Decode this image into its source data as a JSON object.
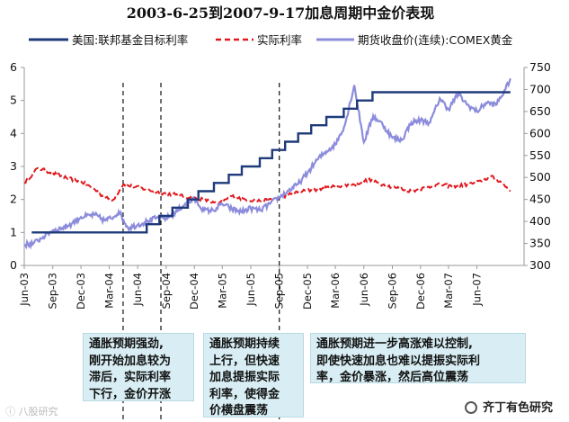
{
  "chart_data": {
    "type": "line",
    "title": "2003-6-25到2007-9-17加息周期中金价表现",
    "legend": [
      "美国:联邦基金目标利率",
      "实际利率",
      "期货收盘价(连续):COMEX黄金"
    ],
    "y_left": {
      "ylim": [
        0,
        6
      ],
      "ticks": [
        "0",
        "1",
        "2",
        "3",
        "4",
        "5",
        "6"
      ]
    },
    "y_right": {
      "ylim": [
        300,
        750
      ],
      "ticks": [
        "300",
        "350",
        "400",
        "450",
        "500",
        "550",
        "600",
        "650",
        "700",
        "750"
      ]
    },
    "x_range": [
      "2003-06-01",
      "2007-10-31"
    ],
    "x_ticks": [
      "Jun-03",
      "Sep-03",
      "Dec-03",
      "Mar-04",
      "Jun-04",
      "Sep-04",
      "Dec-04",
      "Mar-05",
      "Jun-05",
      "Sep-05",
      "Dec-05",
      "Mar-06",
      "Jun-06",
      "Sep-06",
      "Dec-06",
      "Mar-07",
      "Jun-07"
    ],
    "x_tick_dates": [
      "2003-06-01",
      "2003-09-01",
      "2003-12-01",
      "2004-03-01",
      "2004-06-01",
      "2004-09-01",
      "2004-12-01",
      "2005-03-01",
      "2005-06-01",
      "2005-09-01",
      "2005-12-01",
      "2006-03-01",
      "2006-06-01",
      "2006-09-01",
      "2006-12-01",
      "2007-03-01",
      "2007-06-01"
    ],
    "vlines": [
      "2004-04-15",
      "2004-08-15",
      "2005-09-01"
    ],
    "series": [
      {
        "name": "美国:联邦基金目标利率",
        "axis": "left",
        "color": "#1f3a7a",
        "style": "step",
        "points": [
          [
            "2003-06-25",
            1.0
          ],
          [
            "2004-06-30",
            1.25
          ],
          [
            "2004-08-10",
            1.5
          ],
          [
            "2004-09-21",
            1.75
          ],
          [
            "2004-11-10",
            2.0
          ],
          [
            "2004-12-14",
            2.25
          ],
          [
            "2005-02-02",
            2.5
          ],
          [
            "2005-03-22",
            2.75
          ],
          [
            "2005-05-03",
            3.0
          ],
          [
            "2005-06-30",
            3.25
          ],
          [
            "2005-08-09",
            3.5
          ],
          [
            "2005-09-20",
            3.75
          ],
          [
            "2005-11-01",
            4.0
          ],
          [
            "2005-12-13",
            4.25
          ],
          [
            "2006-01-31",
            4.5
          ],
          [
            "2006-03-28",
            4.75
          ],
          [
            "2006-05-10",
            5.0
          ],
          [
            "2006-06-29",
            5.25
          ],
          [
            "2007-09-17",
            5.25
          ]
        ]
      },
      {
        "name": "实际利率",
        "axis": "left",
        "color": "#e0191e",
        "style": "dashed-noisy",
        "points": [
          [
            "2003-06-01",
            2.5
          ],
          [
            "2003-07-15",
            2.95
          ],
          [
            "2003-09-01",
            2.8
          ],
          [
            "2003-10-15",
            2.65
          ],
          [
            "2003-12-01",
            2.55
          ],
          [
            "2004-01-15",
            2.3
          ],
          [
            "2004-02-15",
            2.05
          ],
          [
            "2004-03-15",
            2.0
          ],
          [
            "2004-04-15",
            2.45
          ],
          [
            "2004-05-15",
            2.4
          ],
          [
            "2004-07-01",
            2.3
          ],
          [
            "2004-08-15",
            2.2
          ],
          [
            "2004-10-01",
            2.15
          ],
          [
            "2004-11-15",
            2.05
          ],
          [
            "2005-01-01",
            2.0
          ],
          [
            "2005-02-15",
            1.85
          ],
          [
            "2005-04-01",
            2.1
          ],
          [
            "2005-05-15",
            2.0
          ],
          [
            "2005-07-01",
            1.95
          ],
          [
            "2005-08-15",
            2.0
          ],
          [
            "2005-10-01",
            2.15
          ],
          [
            "2005-11-15",
            2.25
          ],
          [
            "2006-01-01",
            2.3
          ],
          [
            "2006-03-01",
            2.4
          ],
          [
            "2006-05-01",
            2.45
          ],
          [
            "2006-06-15",
            2.6
          ],
          [
            "2006-08-01",
            2.45
          ],
          [
            "2006-09-15",
            2.35
          ],
          [
            "2006-11-01",
            2.25
          ],
          [
            "2006-12-15",
            2.35
          ],
          [
            "2007-02-01",
            2.45
          ],
          [
            "2007-03-15",
            2.4
          ],
          [
            "2007-05-01",
            2.45
          ],
          [
            "2007-06-15",
            2.55
          ],
          [
            "2007-07-15",
            2.7
          ],
          [
            "2007-08-15",
            2.55
          ],
          [
            "2007-09-17",
            2.25
          ]
        ]
      },
      {
        "name": "期货收盘价(连续):COMEX黄金",
        "axis": "right",
        "color": "#8c8cdc",
        "style": "noisy",
        "points": [
          [
            "2003-06-01",
            347
          ],
          [
            "2003-07-01",
            350
          ],
          [
            "2003-08-01",
            365
          ],
          [
            "2003-09-01",
            380
          ],
          [
            "2003-10-01",
            385
          ],
          [
            "2003-11-01",
            395
          ],
          [
            "2003-12-01",
            410
          ],
          [
            "2004-01-15",
            415
          ],
          [
            "2004-02-15",
            402
          ],
          [
            "2004-03-15",
            410
          ],
          [
            "2004-04-01",
            423
          ],
          [
            "2004-05-01",
            385
          ],
          [
            "2004-06-01",
            392
          ],
          [
            "2004-07-01",
            400
          ],
          [
            "2004-08-01",
            408
          ],
          [
            "2004-09-01",
            407
          ],
          [
            "2004-10-01",
            420
          ],
          [
            "2004-11-01",
            440
          ],
          [
            "2004-12-01",
            450
          ],
          [
            "2005-01-01",
            425
          ],
          [
            "2005-02-01",
            425
          ],
          [
            "2005-03-01",
            440
          ],
          [
            "2005-04-01",
            428
          ],
          [
            "2005-05-01",
            422
          ],
          [
            "2005-06-01",
            430
          ],
          [
            "2005-07-01",
            425
          ],
          [
            "2005-08-01",
            440
          ],
          [
            "2005-09-01",
            455
          ],
          [
            "2005-10-01",
            470
          ],
          [
            "2005-11-01",
            485
          ],
          [
            "2005-12-01",
            510
          ],
          [
            "2006-01-01",
            540
          ],
          [
            "2006-02-01",
            560
          ],
          [
            "2006-03-01",
            575
          ],
          [
            "2006-04-01",
            620
          ],
          [
            "2006-05-01",
            710
          ],
          [
            "2006-06-01",
            580
          ],
          [
            "2006-07-01",
            640
          ],
          [
            "2006-08-01",
            620
          ],
          [
            "2006-09-01",
            590
          ],
          [
            "2006-10-01",
            585
          ],
          [
            "2006-11-01",
            625
          ],
          [
            "2006-12-01",
            630
          ],
          [
            "2007-01-01",
            625
          ],
          [
            "2007-02-01",
            680
          ],
          [
            "2007-03-01",
            655
          ],
          [
            "2007-04-01",
            690
          ],
          [
            "2007-05-01",
            665
          ],
          [
            "2007-06-01",
            650
          ],
          [
            "2007-07-01",
            670
          ],
          [
            "2007-08-01",
            665
          ],
          [
            "2007-09-01",
            700
          ],
          [
            "2007-09-17",
            725
          ]
        ]
      }
    ]
  },
  "notes": [
    {
      "lines": [
        "通胀预期强劲,",
        "刚开始加息较为",
        "滞后，实际利率",
        "下行，金价开涨"
      ]
    },
    {
      "lines": [
        "通胀预期持续",
        "上行，但快速",
        "加息提振实际",
        "利率，使得金",
        "价横盘震荡"
      ]
    },
    {
      "lines": [
        "通胀预期进一步高涨难以控制,",
        "即使快速加息也难以提振实际利",
        "率，金价暴涨，然后高位震荡"
      ]
    }
  ],
  "watermark_right": "齐丁有色研究",
  "watermark_left": "ⓘ 八股研究"
}
